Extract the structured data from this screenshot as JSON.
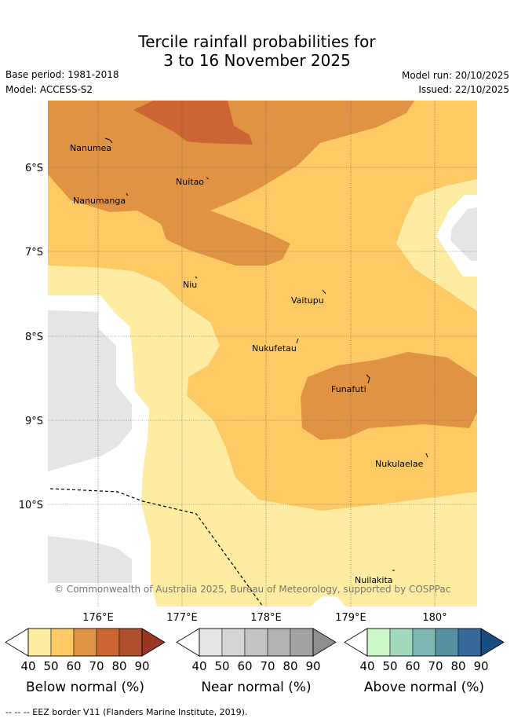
{
  "title": {
    "line1": "Tercile rainfall probabilities for",
    "line2": "3 to 16 November 2025"
  },
  "meta": {
    "base_period": "Base period: 1981-2018",
    "model": "Model: ACCESS-S2",
    "model_run": "Model run: 20/10/2025",
    "issued": "Issued: 22/10/2025"
  },
  "map": {
    "latitude_labels": [
      "6°S",
      "7°S",
      "8°S",
      "9°S",
      "10°S"
    ],
    "longitude_labels": [
      "176°E",
      "177°E",
      "178°E",
      "179°E",
      "180°"
    ],
    "places": [
      "Nanumea",
      "Nuitao",
      "Nanumanga",
      "Niu",
      "Vaitupu",
      "Nukufetau",
      "Funafuti",
      "Nukulaelae",
      "Nuilakita"
    ],
    "credit": "© Commonwealth of Australia 2025, Bureau of Meteorology, supported by COSPPac"
  },
  "legends": [
    {
      "label": "Below normal (%)",
      "ticks": [
        "40",
        "50",
        "60",
        "70",
        "80",
        "90"
      ],
      "colors": [
        "#ffffff",
        "#fdeca2",
        "#fdca63",
        "#e09343",
        "#cd6532",
        "#b04f2e",
        "#9a3624"
      ]
    },
    {
      "label": "Near normal (%)",
      "ticks": [
        "40",
        "50",
        "60",
        "70",
        "80",
        "90"
      ],
      "colors": [
        "#ffffff",
        "#e5e5e5",
        "#d5d5d5",
        "#c3c3c3",
        "#b2b2b2",
        "#a2a2a2",
        "#8e8e8e"
      ]
    },
    {
      "label": "Above normal (%)",
      "ticks": [
        "40",
        "50",
        "60",
        "70",
        "80",
        "90"
      ],
      "colors": [
        "#ffffff",
        "#ccf8c8",
        "#a2d8bc",
        "#7eb7b3",
        "#5890a3",
        "#386799",
        "#184d82"
      ]
    }
  ],
  "footer": "--  --  -- EEZ border V11 (Flanders Marine Institute, 2019)."
}
